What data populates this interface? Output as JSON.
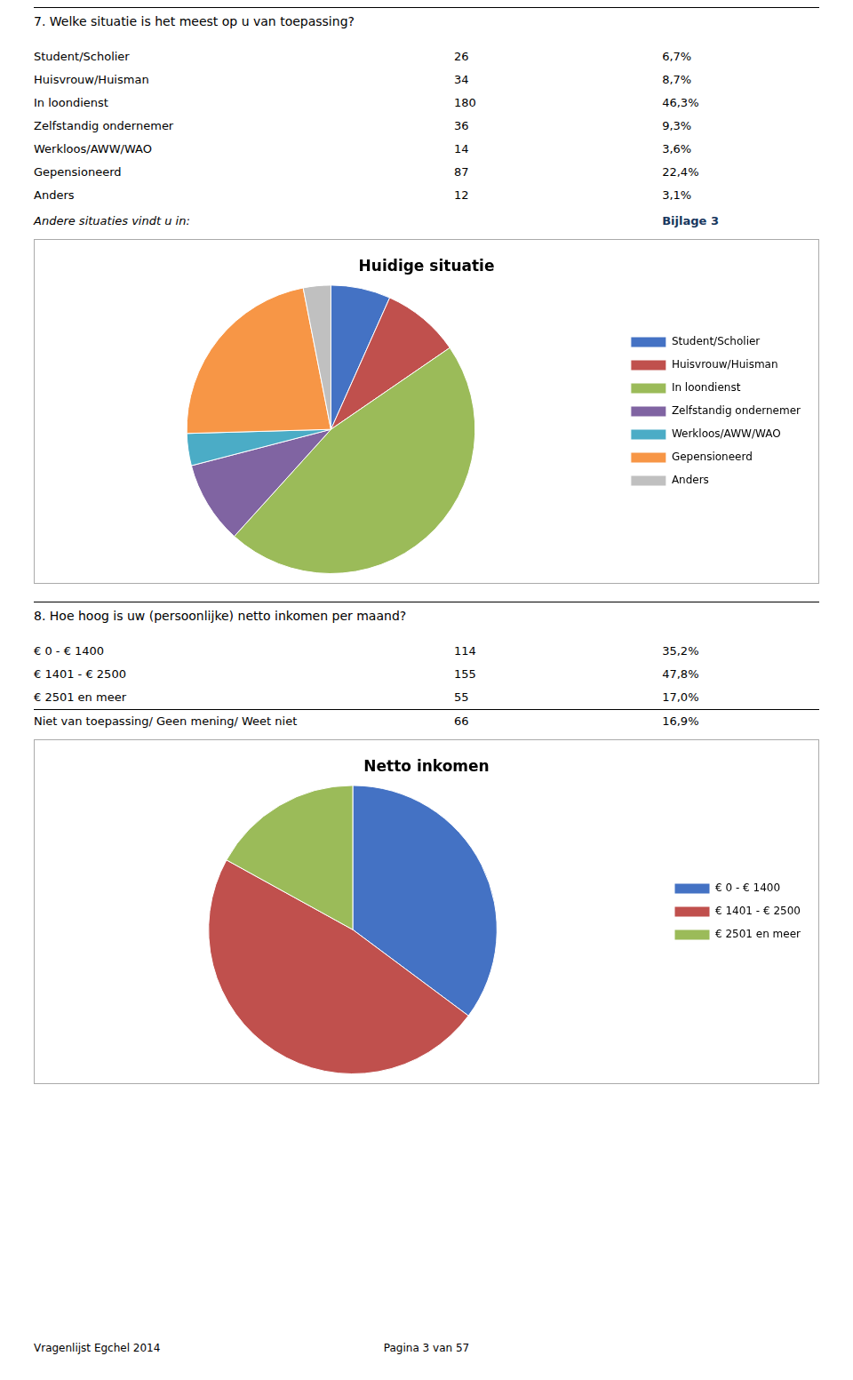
{
  "chart_data": [
    {
      "type": "pie",
      "title": "Huidige situatie",
      "categories": [
        "Student/Scholier",
        "Huisvrouw/Huisman",
        "In loondienst",
        "Zelfstandig ondernemer",
        "Werkloos/AWW/WAO",
        "Gepensioneerd",
        "Anders"
      ],
      "values": [
        26,
        34,
        180,
        36,
        14,
        87,
        12
      ],
      "colors": [
        "#4472C4",
        "#C0504D",
        "#9BBB59",
        "#8064A2",
        "#4BACC6",
        "#F79646",
        "#C0C0C0"
      ],
      "legend": "right"
    },
    {
      "type": "pie",
      "title": "Netto inkomen",
      "categories": [
        "€ 0 - € 1400",
        "€ 1401 - € 2500",
        "€ 2501 en meer"
      ],
      "values": [
        114,
        155,
        55
      ],
      "colors": [
        "#4472C4",
        "#C0504D",
        "#9BBB59"
      ],
      "legend": "right"
    }
  ],
  "sections": [
    {
      "heading": "7. Welke situatie is het meest op u van toepassing?",
      "rows": [
        {
          "label": "Student/Scholier",
          "n": "26",
          "pct": "6,7%"
        },
        {
          "label": "Huisvrouw/Huisman",
          "n": "34",
          "pct": "8,7%"
        },
        {
          "label": "In loondienst",
          "n": "180",
          "pct": "46,3%"
        },
        {
          "label": "Zelfstandig ondernemer",
          "n": "36",
          "pct": "9,3%"
        },
        {
          "label": "Werkloos/AWW/WAO",
          "n": "14",
          "pct": "3,6%"
        },
        {
          "label": "Gepensioneerd",
          "n": "87",
          "pct": "22,4%"
        },
        {
          "label": "Anders",
          "n": "12",
          "pct": "3,1%"
        }
      ],
      "note": "Andere situaties vindt u in:",
      "note_link": "Bijlage 3",
      "note_link_color": "#17375E"
    },
    {
      "heading": "8. Hoe hoog is uw (persoonlijke) netto inkomen per maand?",
      "rows": [
        {
          "label": "€ 0 - € 1400",
          "n": "114",
          "pct": "35,2%",
          "separator": false
        },
        {
          "label": "€ 1401 - € 2500",
          "n": "155",
          "pct": "47,8%",
          "separator": false
        },
        {
          "label": "€ 2501 en meer",
          "n": "55",
          "pct": "17,0%",
          "separator": true
        },
        {
          "label": "Niet van toepassing/ Geen mening/ Weet niet",
          "n": "66",
          "pct": "16,9%",
          "separator": false
        }
      ]
    }
  ],
  "footer": [
    "Vragenlijst Egchel 2014",
    "Pagina 3 van 57"
  ]
}
